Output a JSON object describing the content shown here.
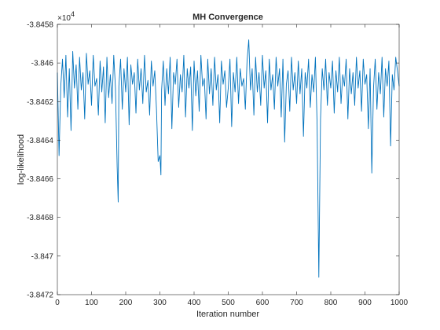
{
  "chart_data": {
    "type": "line",
    "title": "MH Convergence",
    "xlabel": "Iteration number",
    "ylabel": "log-likelihood",
    "xlim": [
      0,
      1000
    ],
    "ylim": [
      -3.8472,
      -3.8458
    ],
    "y_exponent_label": "×10",
    "y_exponent_power": "4",
    "x_ticks": [
      0,
      100,
      200,
      300,
      400,
      500,
      600,
      700,
      800,
      900,
      1000
    ],
    "x_tick_labels": [
      "0",
      "100",
      "200",
      "300",
      "400",
      "500",
      "600",
      "700",
      "800",
      "900",
      "1000"
    ],
    "y_ticks": [
      -3.8472,
      -3.847,
      -3.8468,
      -3.8466,
      -3.8464,
      -3.8462,
      -3.846,
      -3.8458
    ],
    "y_tick_labels": [
      "-3.8472",
      "-3.847",
      "-3.8468",
      "-3.8466",
      "-3.8464",
      "-3.8462",
      "-3.846",
      "-3.8458"
    ],
    "grid": false,
    "line_color": "#0072BD",
    "series": [
      {
        "x": [
          0,
          5,
          10,
          15,
          20,
          25,
          30,
          35,
          40,
          45,
          50,
          55,
          60,
          65,
          70,
          75,
          80,
          85,
          90,
          95,
          100,
          105,
          110,
          115,
          120,
          125,
          130,
          135,
          140,
          145,
          150,
          155,
          160,
          165,
          170,
          175,
          178,
          180,
          185,
          190,
          195,
          200,
          205,
          210,
          215,
          220,
          225,
          230,
          235,
          240,
          245,
          250,
          255,
          260,
          265,
          270,
          275,
          280,
          285,
          290,
          295,
          300,
          303,
          305,
          310,
          315,
          320,
          325,
          330,
          335,
          340,
          345,
          350,
          355,
          360,
          365,
          370,
          375,
          380,
          385,
          390,
          395,
          400,
          405,
          410,
          415,
          420,
          425,
          430,
          435,
          440,
          445,
          450,
          455,
          460,
          465,
          470,
          475,
          480,
          485,
          490,
          495,
          500,
          505,
          510,
          515,
          520,
          525,
          530,
          535,
          540,
          545,
          550,
          555,
          560,
          565,
          570,
          575,
          580,
          585,
          590,
          595,
          600,
          605,
          610,
          615,
          620,
          625,
          630,
          635,
          640,
          645,
          650,
          655,
          660,
          665,
          670,
          675,
          680,
          685,
          690,
          695,
          700,
          705,
          710,
          715,
          720,
          725,
          730,
          735,
          740,
          745,
          750,
          755,
          760,
          765,
          770,
          775,
          780,
          785,
          790,
          795,
          800,
          805,
          810,
          815,
          820,
          825,
          830,
          835,
          840,
          845,
          850,
          855,
          860,
          865,
          870,
          875,
          880,
          885,
          890,
          895,
          900,
          905,
          910,
          915,
          920,
          925,
          930,
          935,
          940,
          945,
          950,
          955,
          960,
          965,
          970,
          975,
          980,
          985,
          990,
          995,
          1000
        ],
        "y": [
          -3.84605,
          -3.84648,
          -3.84612,
          -3.84598,
          -3.84618,
          -3.84596,
          -3.84628,
          -3.84603,
          -3.84635,
          -3.84594,
          -3.84613,
          -3.84601,
          -3.84624,
          -3.84597,
          -3.84614,
          -3.84605,
          -3.84629,
          -3.84595,
          -3.84611,
          -3.84604,
          -3.84622,
          -3.84596,
          -3.84612,
          -3.84608,
          -3.84627,
          -3.84599,
          -3.84615,
          -3.84602,
          -3.84631,
          -3.84597,
          -3.84618,
          -3.84606,
          -3.84621,
          -3.84596,
          -3.84613,
          -3.84654,
          -3.84672,
          -3.84612,
          -3.84598,
          -3.84624,
          -3.84603,
          -3.84615,
          -3.84597,
          -3.84632,
          -3.84601,
          -3.84611,
          -3.84605,
          -3.84626,
          -3.84598,
          -3.84614,
          -3.84603,
          -3.84621,
          -3.84596,
          -3.84615,
          -3.84609,
          -3.84627,
          -3.84599,
          -3.84612,
          -3.84604,
          -3.84624,
          -3.84651,
          -3.84648,
          -3.84658,
          -3.84614,
          -3.84599,
          -3.84622,
          -3.84603,
          -3.84616,
          -3.84597,
          -3.84634,
          -3.84605,
          -3.84611,
          -3.84598,
          -3.84623,
          -3.84606,
          -3.84615,
          -3.84596,
          -3.84628,
          -3.84603,
          -3.84613,
          -3.84602,
          -3.84635,
          -3.84599,
          -3.84617,
          -3.84604,
          -3.84625,
          -3.84596,
          -3.84612,
          -3.84608,
          -3.84629,
          -3.84598,
          -3.84616,
          -3.84603,
          -3.84622,
          -3.84597,
          -3.84614,
          -3.84606,
          -3.84631,
          -3.84599,
          -3.84611,
          -3.84604,
          -3.84623,
          -3.84613,
          -3.84598,
          -3.84633,
          -3.84605,
          -3.84615,
          -3.84597,
          -3.84621,
          -3.84603,
          -3.84612,
          -3.84608,
          -3.84624,
          -3.84599,
          -3.84588,
          -3.84614,
          -3.84603,
          -3.84627,
          -3.84597,
          -3.84615,
          -3.84605,
          -3.84622,
          -3.84596,
          -3.84613,
          -3.84604,
          -3.84631,
          -3.84598,
          -3.84614,
          -3.84606,
          -3.84624,
          -3.84597,
          -3.84612,
          -3.84603,
          -3.84628,
          -3.84598,
          -3.84641,
          -3.84611,
          -3.84604,
          -3.84625,
          -3.84597,
          -3.84614,
          -3.84605,
          -3.84621,
          -3.84599,
          -3.84616,
          -3.84603,
          -3.84638,
          -3.84605,
          -3.84613,
          -3.84598,
          -3.84623,
          -3.84606,
          -3.84615,
          -3.84597,
          -3.84632,
          -3.84711,
          -3.84629,
          -3.84603,
          -3.84614,
          -3.84598,
          -3.84622,
          -3.84605,
          -3.84613,
          -3.84599,
          -3.84626,
          -3.84604,
          -3.84615,
          -3.84597,
          -3.84621,
          -3.84606,
          -3.84612,
          -3.84598,
          -3.84629,
          -3.84603,
          -3.84616,
          -3.84605,
          -3.84622,
          -3.84597,
          -3.84613,
          -3.84604,
          -3.84625,
          -3.84598,
          -3.84611,
          -3.84606,
          -3.84634,
          -3.84603,
          -3.84657,
          -3.84613,
          -3.84598,
          -3.84624,
          -3.84605,
          -3.84616,
          -3.84597,
          -3.84628,
          -3.84603,
          -3.84612,
          -3.84599,
          -3.84643,
          -3.84606,
          -3.84614,
          -3.84597,
          -3.84604,
          -3.84612
        ]
      }
    ]
  }
}
